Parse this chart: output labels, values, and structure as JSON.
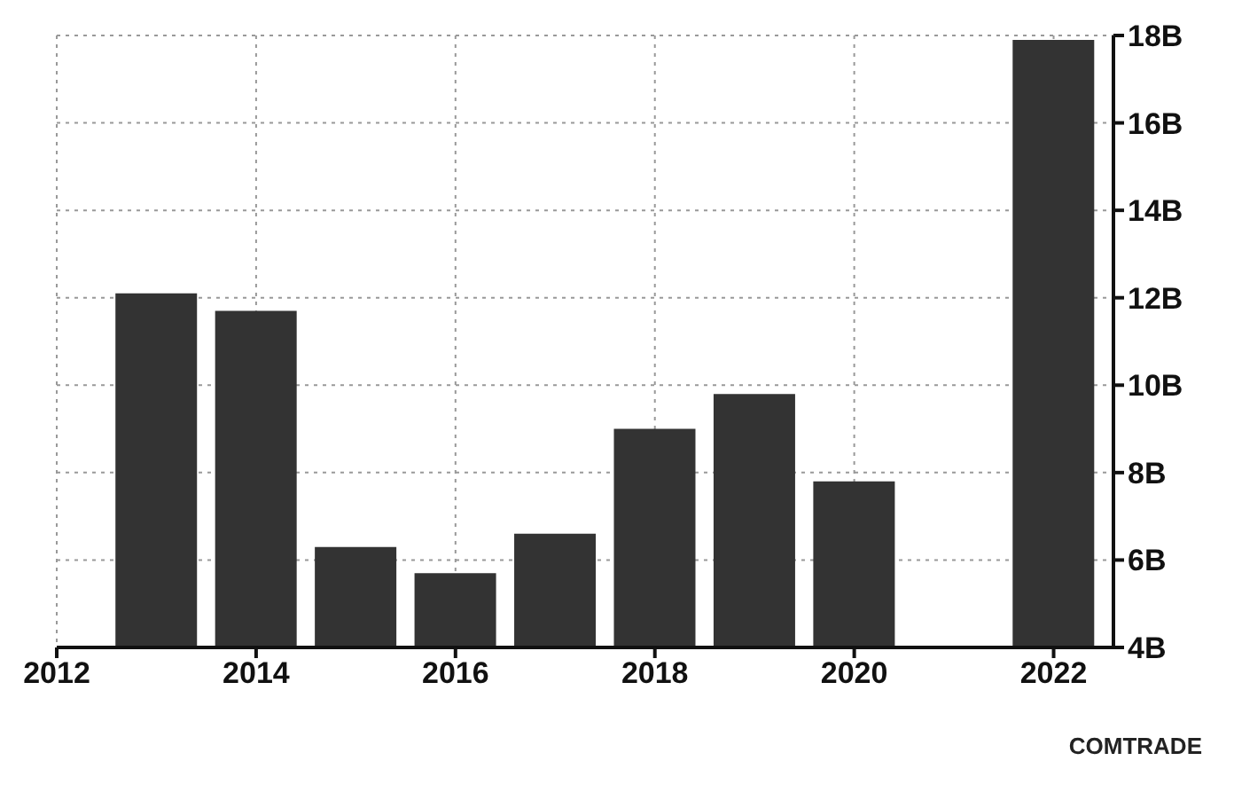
{
  "chart_data": {
    "type": "bar",
    "x": [
      2013,
      2014,
      2015,
      2016,
      2017,
      2018,
      2019,
      2020,
      2022
    ],
    "values": [
      12.1,
      11.7,
      6.3,
      5.7,
      6.6,
      9.0,
      9.8,
      7.8,
      17.9
    ],
    "color": "#333333",
    "xlim": [
      2012,
      2022.6
    ],
    "xticks": [
      2012,
      2014,
      2016,
      2018,
      2020,
      2022
    ],
    "ylim": [
      4,
      18
    ],
    "yticks": [
      {
        "value": 4,
        "label": "4B"
      },
      {
        "value": 6,
        "label": "6B"
      },
      {
        "value": 8,
        "label": "8B"
      },
      {
        "value": 10,
        "label": "10B"
      },
      {
        "value": 12,
        "label": "12B"
      },
      {
        "value": 14,
        "label": "14B"
      },
      {
        "value": 16,
        "label": "16B"
      },
      {
        "value": 18,
        "label": "18B"
      }
    ],
    "grid": true,
    "annotations": [
      "COMTRADE"
    ]
  }
}
